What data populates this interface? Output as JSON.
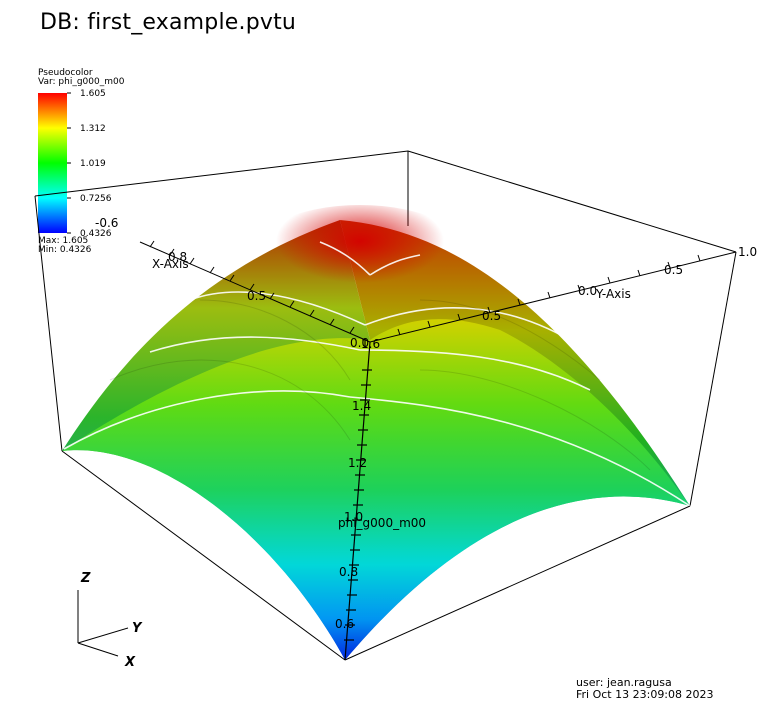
{
  "title": "DB: first_example.pvtu",
  "legend": {
    "plot_type": "Pseudocolor",
    "var": "Var: phi_g000_m00",
    "ticks": [
      "1.605",
      "1.312",
      "1.019",
      "0.7256",
      "0.4326"
    ],
    "max": "Max:  1.605",
    "min": "Min:  0.4326",
    "colors": [
      "#ff0000",
      "#ffff00",
      "#00ff00",
      "#00ffff",
      "#0000ff"
    ]
  },
  "axes": {
    "x_label": "X-Axis",
    "y_label": "Y-Axis",
    "z_label": "phi_g000_m00",
    "x_ticks": [
      "0.0",
      "0.5",
      "0.8"
    ],
    "x_extra_tick": "-0.6",
    "y_ticks": [
      "0.5",
      "0.0",
      "0.5"
    ],
    "y_end": "1.0",
    "z_ticks": [
      "1.6",
      "1.4",
      "1.2",
      "1.0",
      "0.8",
      "0.6"
    ]
  },
  "triad": {
    "z": "Z",
    "y": "Y",
    "x": "X"
  },
  "footer": {
    "user": "user: jean.ragusa",
    "date": "Fri Oct 13 23:09:08 2023"
  }
}
